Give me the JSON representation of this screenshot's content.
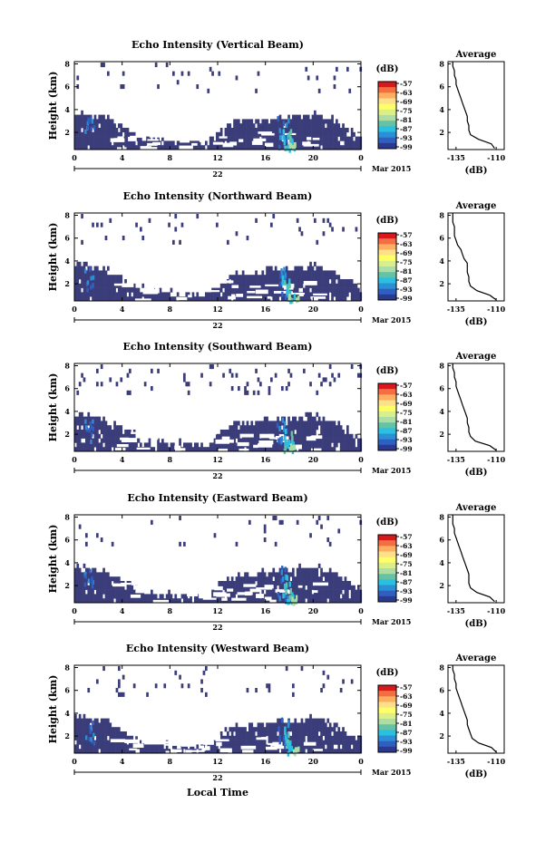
{
  "figure": {
    "xlabel": "Local Time",
    "date_label": "Mar 2015",
    "day_label": "22"
  },
  "colorbar": {
    "unit": "(dB)",
    "ticks": [
      "-57",
      "-63",
      "-69",
      "-75",
      "-81",
      "-87",
      "-93",
      "-99"
    ],
    "colors": [
      "#d7191c",
      "#f46d43",
      "#fdae61",
      "#fee08b",
      "#ffff66",
      "#d9ef8b",
      "#abdda4",
      "#66c2a5",
      "#2bbfe0",
      "#2b8fd6",
      "#2e5fc1",
      "#2b3a8f"
    ],
    "background_color": "#3a3d7a"
  },
  "chart_data": [
    {
      "type": "heatmap",
      "title": "Echo Intensity (Vertical Beam)",
      "ylabel": "Height (km)",
      "x_ticks": [
        "0",
        "4",
        "8",
        "12",
        "16",
        "20",
        "0"
      ],
      "y_ticks": [
        "2",
        "4",
        "6",
        "8"
      ],
      "xlim": [
        0,
        24
      ],
      "ylim": [
        0.5,
        8.2
      ],
      "profile": {
        "title": "Average",
        "xlabel": "(dB)",
        "x_ticks": [
          "-135",
          "-110"
        ],
        "y_ticks": [
          "2",
          "4",
          "6",
          "8"
        ],
        "xlim": [
          -140,
          -105
        ],
        "ylim": [
          0.5,
          8.2
        ],
        "heights": [
          0.6,
          1.0,
          1.4,
          1.8,
          2.2,
          2.6,
          3.0,
          3.4,
          3.8,
          4.2,
          4.6,
          5.0,
          5.4,
          5.8,
          6.2,
          6.6,
          7.0,
          7.4,
          7.8,
          8.2
        ],
        "values": [
          -111,
          -113,
          -121,
          -126,
          -127,
          -127,
          -128,
          -128,
          -129,
          -130,
          -131,
          -132,
          -133,
          -134,
          -135,
          -135,
          -136,
          -136,
          -137,
          -137
        ]
      }
    },
    {
      "type": "heatmap",
      "title": "Echo Intensity (Northward Beam)",
      "ylabel": "Height (km)",
      "x_ticks": [
        "0",
        "4",
        "8",
        "12",
        "16",
        "20",
        "0"
      ],
      "y_ticks": [
        "2",
        "4",
        "6",
        "8"
      ],
      "xlim": [
        0,
        24
      ],
      "ylim": [
        0.5,
        8.2
      ],
      "profile": {
        "title": "Average",
        "xlabel": "(dB)",
        "x_ticks": [
          "-135",
          "-110"
        ],
        "y_ticks": [
          "2",
          "4",
          "6",
          "8"
        ],
        "xlim": [
          -140,
          -105
        ],
        "ylim": [
          0.5,
          8.2
        ],
        "heights": [
          0.6,
          1.0,
          1.4,
          1.8,
          2.2,
          2.6,
          3.0,
          3.4,
          3.8,
          4.2,
          4.6,
          5.0,
          5.4,
          5.8,
          6.2,
          6.6,
          7.0,
          7.4,
          7.8,
          8.2
        ],
        "values": [
          -110,
          -114,
          -122,
          -126,
          -127,
          -127,
          -128,
          -128,
          -128,
          -130,
          -131,
          -132,
          -134,
          -135,
          -136,
          -136,
          -136,
          -137,
          -137,
          -137
        ]
      }
    },
    {
      "type": "heatmap",
      "title": "Echo Intensity (Southward Beam)",
      "ylabel": "Height (km)",
      "x_ticks": [
        "0",
        "4",
        "8",
        "12",
        "16",
        "20",
        "0"
      ],
      "y_ticks": [
        "2",
        "4",
        "6",
        "8"
      ],
      "xlim": [
        0,
        24
      ],
      "ylim": [
        0.5,
        8.2
      ],
      "profile": {
        "title": "Average",
        "xlabel": "(dB)",
        "x_ticks": [
          "-135",
          "-110"
        ],
        "y_ticks": [
          "2",
          "4",
          "6",
          "8"
        ],
        "xlim": [
          -140,
          -105
        ],
        "ylim": [
          0.5,
          8.2
        ],
        "heights": [
          0.6,
          1.0,
          1.4,
          1.8,
          2.2,
          2.6,
          3.0,
          3.4,
          3.8,
          4.2,
          4.6,
          5.0,
          5.4,
          5.8,
          6.2,
          6.6,
          7.0,
          7.4,
          7.8,
          8.2
        ],
        "values": [
          -110,
          -114,
          -123,
          -126,
          -127,
          -127,
          -128,
          -128,
          -129,
          -130,
          -131,
          -132,
          -133,
          -134,
          -135,
          -135,
          -136,
          -136,
          -137,
          -137
        ]
      }
    },
    {
      "type": "heatmap",
      "title": "Echo Intensity (Eastward Beam)",
      "ylabel": "Height (km)",
      "x_ticks": [
        "0",
        "4",
        "8",
        "12",
        "16",
        "20",
        "0"
      ],
      "y_ticks": [
        "2",
        "4",
        "6",
        "8"
      ],
      "xlim": [
        0,
        24
      ],
      "ylim": [
        0.5,
        8.2
      ],
      "profile": {
        "title": "Average",
        "xlabel": "(dB)",
        "x_ticks": [
          "-135",
          "-110"
        ],
        "y_ticks": [
          "2",
          "4",
          "6",
          "8"
        ],
        "xlim": [
          -140,
          -105
        ],
        "ylim": [
          0.5,
          8.2
        ],
        "heights": [
          0.6,
          1.0,
          1.4,
          1.8,
          2.2,
          2.6,
          3.0,
          3.4,
          3.8,
          4.2,
          4.6,
          5.0,
          5.4,
          5.8,
          6.2,
          6.6,
          7.0,
          7.4,
          7.8,
          8.2
        ],
        "values": [
          -111,
          -114,
          -122,
          -126,
          -127,
          -127,
          -127,
          -128,
          -129,
          -130,
          -131,
          -132,
          -133,
          -134,
          -135,
          -136,
          -136,
          -137,
          -137,
          -137
        ]
      }
    },
    {
      "type": "heatmap",
      "title": "Echo Intensity (Westward Beam)",
      "ylabel": "Height (km)",
      "x_ticks": [
        "0",
        "4",
        "8",
        "12",
        "16",
        "20",
        "0"
      ],
      "y_ticks": [
        "2",
        "4",
        "6",
        "8"
      ],
      "xlim": [
        0,
        24
      ],
      "ylim": [
        0.5,
        8.2
      ],
      "profile": {
        "title": "Average",
        "xlabel": "(dB)",
        "x_ticks": [
          "-135",
          "-110"
        ],
        "y_ticks": [
          "2",
          "4",
          "6",
          "8"
        ],
        "xlim": [
          -140,
          -105
        ],
        "ylim": [
          0.5,
          8.2
        ],
        "heights": [
          0.6,
          1.0,
          1.4,
          1.8,
          2.2,
          2.6,
          3.0,
          3.4,
          3.8,
          4.2,
          4.6,
          5.0,
          5.4,
          5.8,
          6.2,
          6.6,
          7.0,
          7.4,
          7.8,
          8.2
        ],
        "values": [
          -110,
          -113,
          -121,
          -125,
          -126,
          -127,
          -128,
          -128,
          -129,
          -130,
          -131,
          -132,
          -133,
          -134,
          -135,
          -135,
          -136,
          -136,
          -137,
          -137
        ]
      }
    }
  ]
}
